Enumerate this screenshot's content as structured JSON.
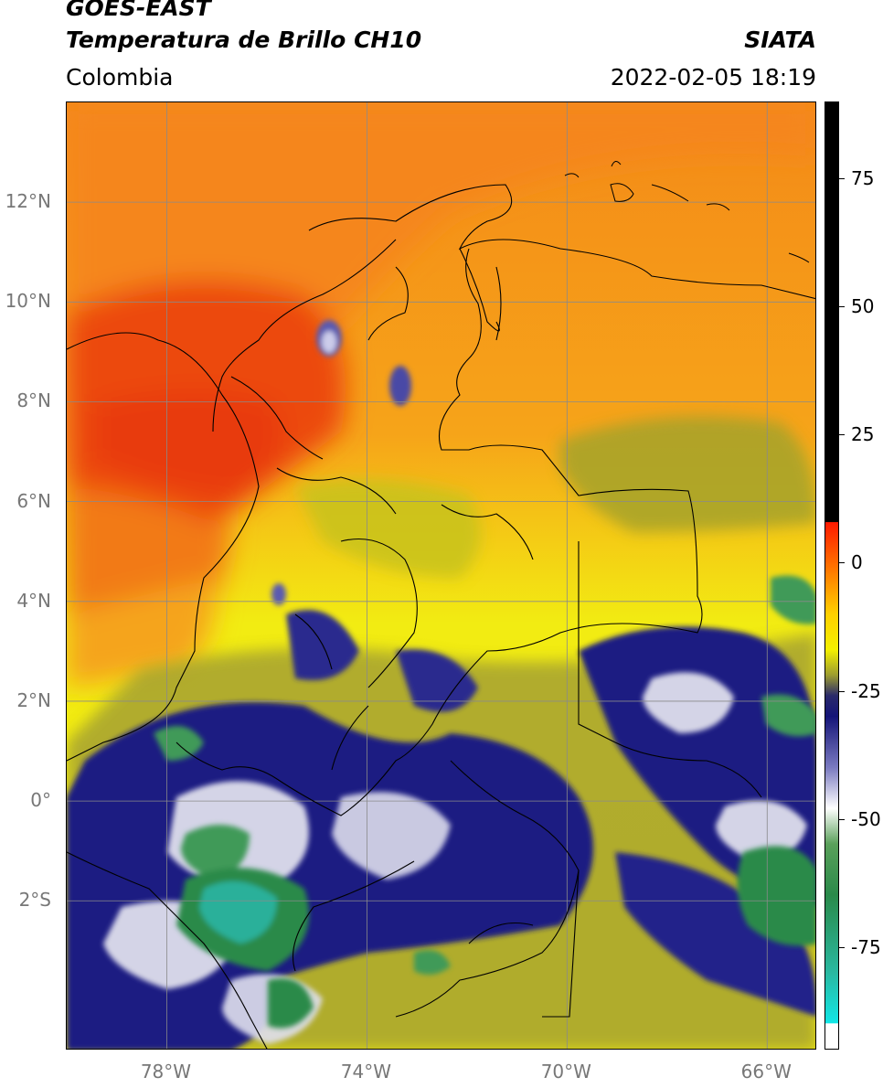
{
  "header": {
    "title_line1": "GOES-EAST",
    "title_line2": "Temperatura de Brillo CH10",
    "region": "Colombia",
    "brand": "SIATA",
    "timestamp": "2022-02-05 18:19"
  },
  "map": {
    "lon_range": [
      -80,
      -65
    ],
    "lat_range": [
      -5,
      14
    ],
    "lat_ticks": [
      {
        "label": "12°N",
        "lat": 12
      },
      {
        "label": "10°N",
        "lat": 10
      },
      {
        "label": "8°N",
        "lat": 8
      },
      {
        "label": "6°N",
        "lat": 6
      },
      {
        "label": "4°N",
        "lat": 4
      },
      {
        "label": "2°N",
        "lat": 2
      },
      {
        "label": "0°",
        "lat": 0
      },
      {
        "label": "2°S",
        "lat": -2
      }
    ],
    "lon_ticks": [
      {
        "label": "78°W",
        "lon": -78
      },
      {
        "label": "74°W",
        "lon": -74
      },
      {
        "label": "70°W",
        "lon": -70
      },
      {
        "label": "66°W",
        "lon": -66
      }
    ],
    "grid": true,
    "colors": {
      "warm_red": "#ee4a10",
      "orange": "#f6951a",
      "yellow": "#f2ec12",
      "olive": "#9a9a2a",
      "navy": "#1c1e82",
      "white": "#f3f3f3",
      "green": "#3f9a58",
      "teal": "#2bbaa0"
    }
  },
  "colorbar": {
    "min": -95,
    "max": 90,
    "ticks": [
      75,
      50,
      25,
      0,
      -25,
      -50,
      -75
    ],
    "stops": [
      {
        "value": 90,
        "color": "#000000"
      },
      {
        "value": 8,
        "color": "#000000"
      },
      {
        "value": 7.9,
        "color": "#ff1a00"
      },
      {
        "value": 0,
        "color": "#ff6a00"
      },
      {
        "value": -10,
        "color": "#ffd000"
      },
      {
        "value": -17,
        "color": "#f4f000"
      },
      {
        "value": -22,
        "color": "#9c9c30"
      },
      {
        "value": -26,
        "color": "#2a2a6a"
      },
      {
        "value": -30,
        "color": "#141478"
      },
      {
        "value": -40,
        "color": "#7a7ac0"
      },
      {
        "value": -48,
        "color": "#ffffff"
      },
      {
        "value": -55,
        "color": "#5aa05a"
      },
      {
        "value": -65,
        "color": "#2a8a4a"
      },
      {
        "value": -80,
        "color": "#2ab8a0"
      },
      {
        "value": -90,
        "color": "#12e6e6"
      },
      {
        "value": -90.1,
        "color": "#ffffff"
      },
      {
        "value": -95,
        "color": "#ffffff"
      }
    ]
  }
}
